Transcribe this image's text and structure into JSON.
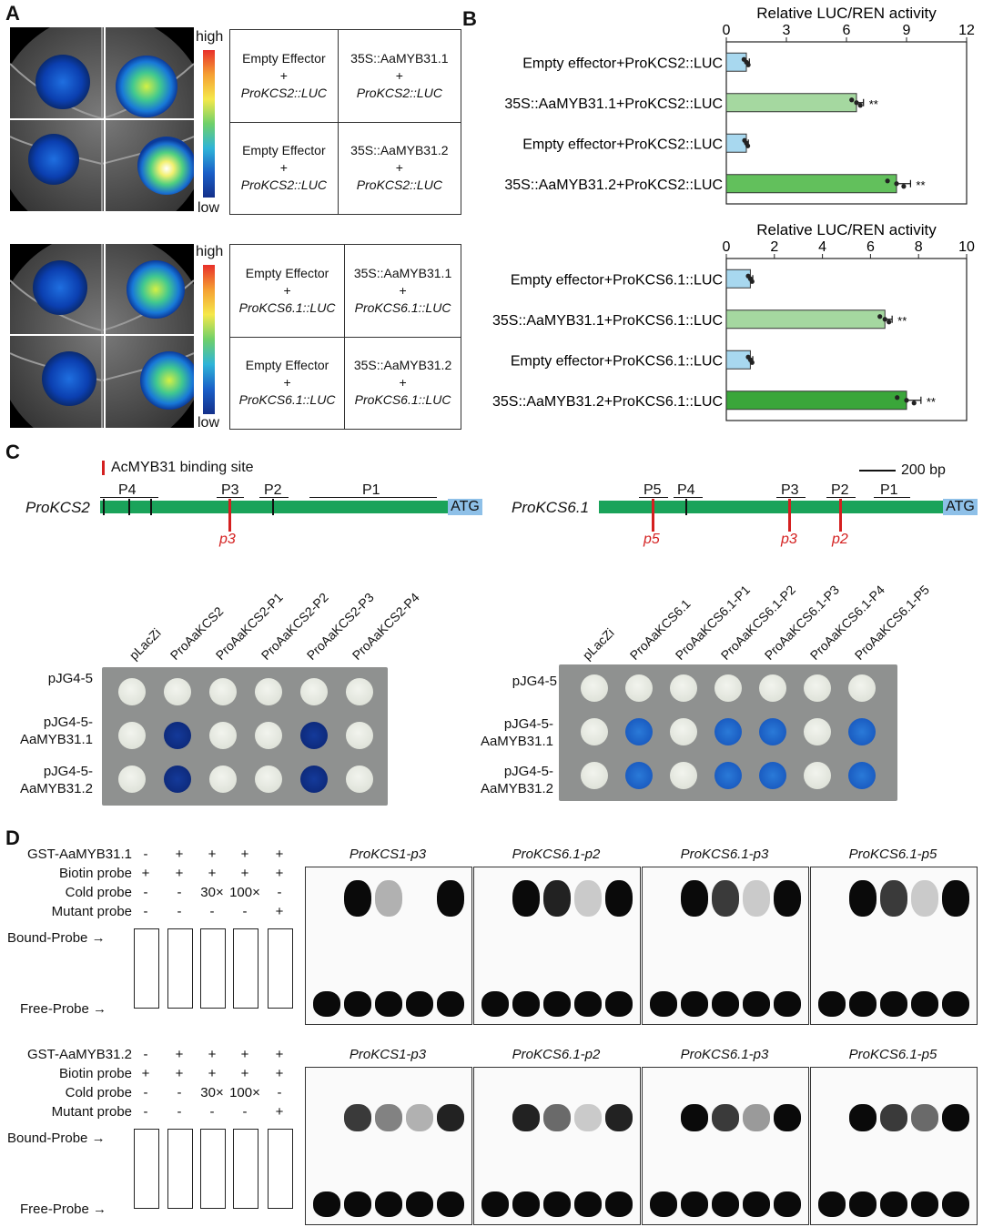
{
  "panelA": {
    "letter": "A",
    "scale_high": "high",
    "scale_low": "low",
    "table1": {
      "r1c1": [
        "Empty Effector",
        "+",
        "ProKCS2::LUC"
      ],
      "r1c2": [
        "35S::AaMYB31.1",
        "+",
        "ProKCS2::LUC"
      ],
      "r2c1": [
        "Empty Effector",
        "+",
        "ProKCS2::LUC"
      ],
      "r2c2": [
        "35S::AaMYB31.2",
        "+",
        "ProKCS2::LUC"
      ]
    },
    "table2": {
      "r1c1": [
        "Empty Effector",
        "+",
        "ProKCS6.1::LUC"
      ],
      "r1c2": [
        "35S::AaMYB31.1",
        "+",
        "ProKCS6.1::LUC"
      ],
      "r2c1": [
        "Empty Effector",
        "+",
        "ProKCS6.1::LUC"
      ],
      "r2c2": [
        "35S::AaMYB31.2",
        "+",
        "ProKCS6.1::LUC"
      ]
    }
  },
  "panelB": {
    "letter": "B",
    "colors": {
      "light_blue": "#a8d8ef",
      "light_green": "#a5d8a0",
      "mid_green": "#62c05c",
      "dark_green": "#3aa63a"
    },
    "chart_data": [
      {
        "type": "bar",
        "orientation": "horizontal",
        "xlabel": "Relative LUC/REN activity",
        "xlim": [
          0,
          12
        ],
        "ticks": [
          "0",
          "3",
          "6",
          "9",
          "12"
        ],
        "categories": [
          "Empty effector+ProKCS2::LUC",
          "35S::AaMYB31.1+ProKCS2::LUC",
          "Empty effector+ProKCS2::LUC",
          "35S::AaMYB31.2+ProKCS2::LUC"
        ],
        "values": [
          1.0,
          6.5,
          1.0,
          8.5
        ],
        "errors": [
          0.15,
          0.35,
          0.1,
          0.7
        ],
        "significance": [
          "",
          "**",
          "",
          "**"
        ]
      },
      {
        "type": "bar",
        "orientation": "horizontal",
        "xlabel": "Relative LUC/REN activity",
        "xlim": [
          0,
          10
        ],
        "ticks": [
          "0",
          "2",
          "4",
          "6",
          "8",
          "10"
        ],
        "categories": [
          "Empty effector+ProKCS6.1::LUC",
          "35S::AaMYB31.1+ProKCS6.1::LUC",
          "Empty effector+ProKCS6.1::LUC",
          "35S::AaMYB31.2+ProKCS6.1::LUC"
        ],
        "values": [
          1.0,
          6.6,
          1.0,
          7.5
        ],
        "errors": [
          0.1,
          0.3,
          0.1,
          0.6
        ],
        "significance": [
          "",
          "**",
          "",
          "**"
        ]
      }
    ]
  },
  "panelC": {
    "letter": "C",
    "legend": "AcMYB31 binding site",
    "scale": "200 bp",
    "left": {
      "name": "ProKCS2",
      "atg": "ATG",
      "fragments": [
        "P4",
        "P3",
        "P2",
        "P1"
      ],
      "sites": [
        "p3"
      ],
      "plate_cols": [
        "pLacZi",
        "ProAaKCS2",
        "ProAaKCS2-P1",
        "ProAaKCS2-P2",
        "ProAaKCS2-P3",
        "ProAaKCS2-P4"
      ],
      "plate_rows": [
        [
          "pJG4-5"
        ],
        [
          "pJG4-5-",
          "AaMYB31.1"
        ],
        [
          "pJG4-5-",
          "AaMYB31.2"
        ]
      ],
      "blue_spots": [
        [
          false,
          false,
          false,
          false,
          false,
          false
        ],
        [
          false,
          true,
          false,
          false,
          true,
          false
        ],
        [
          false,
          true,
          false,
          false,
          true,
          false
        ]
      ]
    },
    "right": {
      "name": "ProKCS6.1",
      "atg": "ATG",
      "fragments": [
        "P5",
        "P4",
        "P3",
        "P2",
        "P1"
      ],
      "sites": [
        "p5",
        "p3",
        "p2"
      ],
      "plate_cols": [
        "pLacZi",
        "ProAaKCS6.1",
        "ProAaKCS6.1-P1",
        "ProAaKCS6.1-P2",
        "ProAaKCS6.1-P3",
        "ProAaKCS6.1-P4",
        "ProAaKCS6.1-P5"
      ],
      "plate_rows": [
        [
          "pJG4-5"
        ],
        [
          "pJG4-5-",
          "AaMYB31.1"
        ],
        [
          "pJG4-5-",
          "AaMYB31.2"
        ]
      ],
      "blue_spots": [
        [
          false,
          false,
          false,
          false,
          false,
          false,
          false
        ],
        [
          false,
          true,
          false,
          true,
          true,
          false,
          true
        ],
        [
          false,
          true,
          false,
          true,
          true,
          false,
          true
        ]
      ]
    }
  },
  "panelD": {
    "letter": "D",
    "blocks": [
      {
        "rows": [
          {
            "label": "GST-AaMYB31.1",
            "signs": [
              "-",
              "+",
              "+",
              "+",
              "+"
            ]
          },
          {
            "label": "Biotin probe",
            "signs": [
              "+",
              "+",
              "+",
              "+",
              "+"
            ]
          },
          {
            "label": "Cold probe",
            "signs": [
              "-",
              "-",
              "30×",
              "100×",
              "-"
            ]
          },
          {
            "label": "Mutant probe",
            "signs": [
              "-",
              "-",
              "-",
              "-",
              "+"
            ]
          }
        ],
        "bound": "Bound-Probe",
        "free": "Free-Probe",
        "blots": [
          "ProKCS1-p3",
          "ProKCS6.1-p2",
          "ProKCS6.1-p3",
          "ProKCS6.1-p5"
        ]
      },
      {
        "rows": [
          {
            "label": "GST-AaMYB31.2",
            "signs": [
              "-",
              "+",
              "+",
              "+",
              "+"
            ]
          },
          {
            "label": "Biotin probe",
            "signs": [
              "+",
              "+",
              "+",
              "+",
              "+"
            ]
          },
          {
            "label": "Cold probe",
            "signs": [
              "-",
              "-",
              "30×",
              "100×",
              "-"
            ]
          },
          {
            "label": "Mutant probe",
            "signs": [
              "-",
              "-",
              "-",
              "-",
              "+"
            ]
          }
        ],
        "bound": "Bound-Probe",
        "free": "Free-Probe",
        "blots": [
          "ProKCS1-p3",
          "ProKCS6.1-p2",
          "ProKCS6.1-p3",
          "ProKCS6.1-p5"
        ]
      }
    ]
  }
}
